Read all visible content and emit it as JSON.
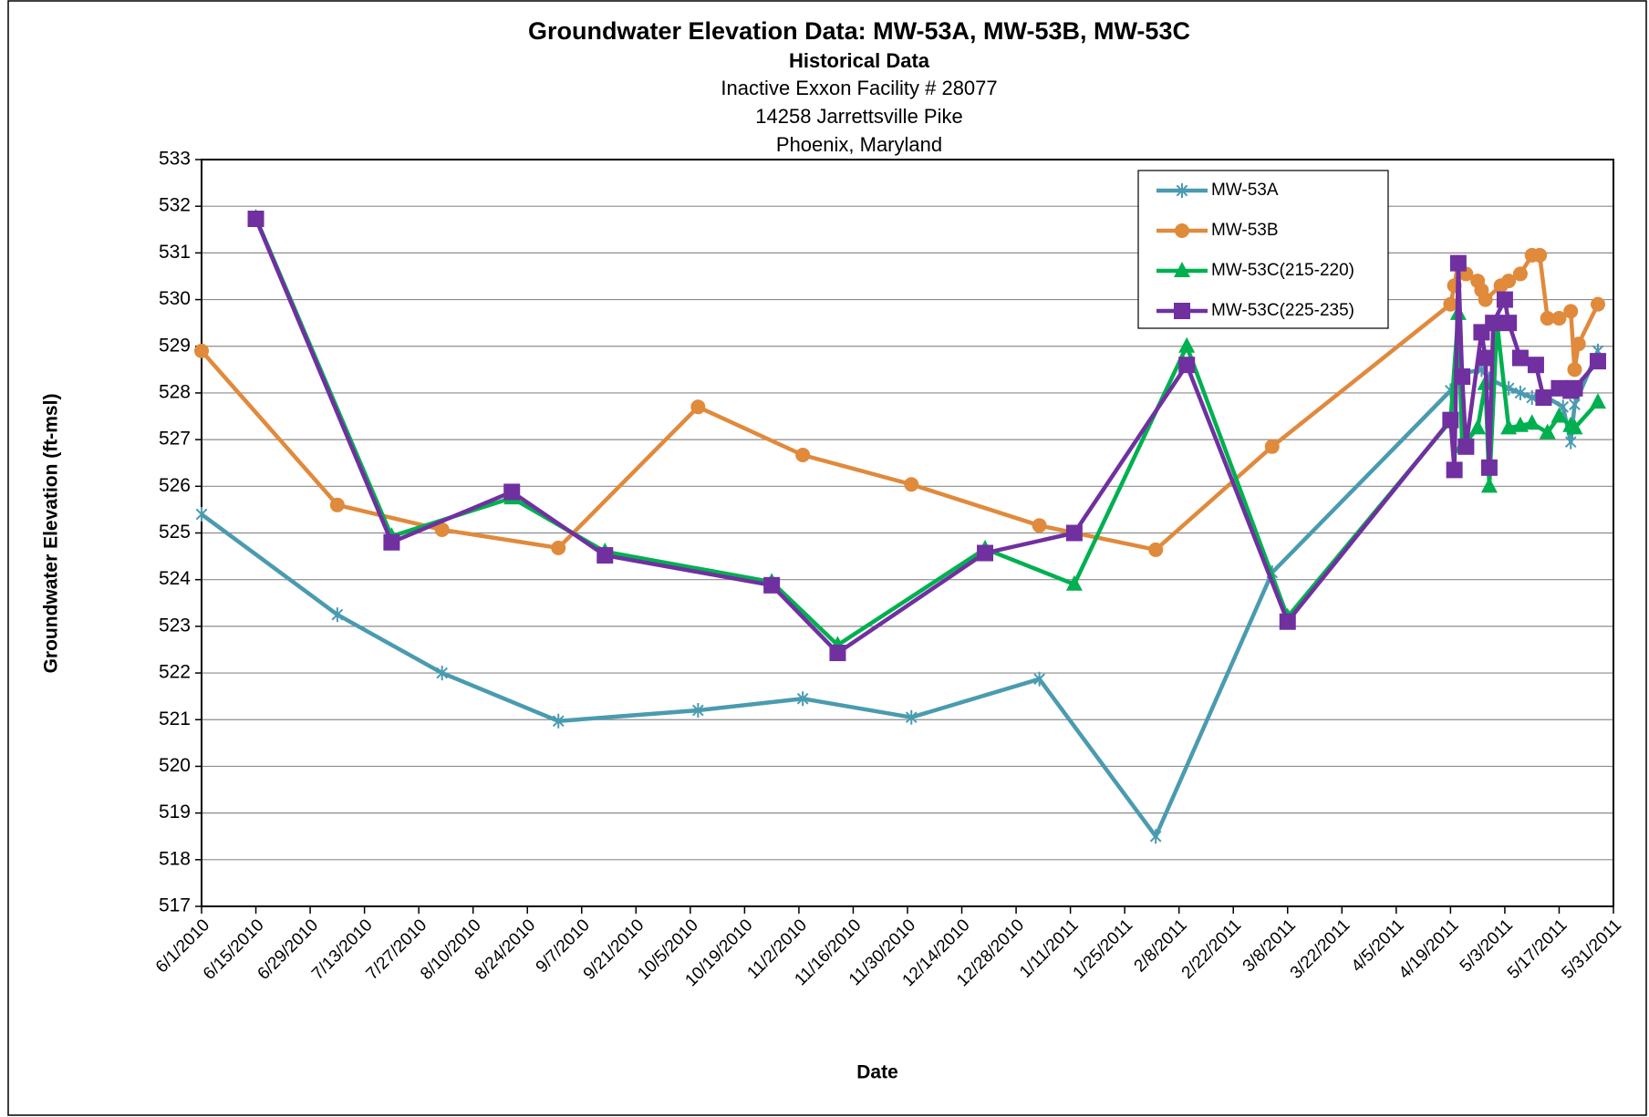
{
  "chart_data": {
    "type": "line",
    "title": "Groundwater Elevation Data: MW-53A, MW-53B, MW-53C",
    "subtitle": "Historical Data",
    "subtitle_lines": [
      "Inactive Exxon Facility # 28077",
      "14258 Jarrettsville Pike",
      "Phoenix, Maryland"
    ],
    "x_label": "Date",
    "y_label": "Groundwater Elevation  (ft-msl)",
    "xlim": [
      "6/1/2010",
      "5/31/2011"
    ],
    "xticks": [
      "6/1/2010",
      "6/15/2010",
      "6/29/2010",
      "7/13/2010",
      "7/27/2010",
      "8/10/2010",
      "8/24/2010",
      "9/7/2010",
      "9/21/2010",
      "10/5/2010",
      "10/19/2010",
      "11/2/2010",
      "11/16/2010",
      "11/30/2010",
      "12/14/2010",
      "12/28/2010",
      "1/11/2011",
      "1/25/2011",
      "2/8/2011",
      "2/22/2011",
      "3/8/2011",
      "3/22/2011",
      "4/5/2011",
      "4/19/2011",
      "5/3/2011",
      "5/17/2011",
      "5/31/2011"
    ],
    "ylim": [
      517,
      533
    ],
    "yticks": [
      517,
      518,
      519,
      520,
      521,
      522,
      523,
      524,
      525,
      526,
      527,
      528,
      529,
      530,
      531,
      532,
      533
    ],
    "grid": true,
    "legend": "upper right",
    "series": [
      {
        "name": "MW-53A",
        "color": "#4a9bb0",
        "marker": "asterisk",
        "x": [
          "6/1/2010",
          "7/6/2010",
          "8/2/2010",
          "9/1/2010",
          "10/7/2010",
          "11/3/2010",
          "12/1/2010",
          "1/3/2011",
          "2/2/2011",
          "3/4/2011",
          "4/19/2011",
          "4/21/2011",
          "4/27/2011",
          "4/29/2011",
          "5/4/2011",
          "5/7/2011",
          "5/10/2011",
          "5/14/2011",
          "5/18/2011",
          "5/20/2011",
          "5/21/2011",
          "5/27/2011"
        ],
        "values": [
          525.4,
          523.25,
          522.0,
          520.97,
          521.2,
          521.45,
          521.05,
          521.87,
          518.5,
          524.15,
          528.05,
          528.4,
          528.5,
          528.3,
          528.1,
          528.0,
          527.9,
          527.9,
          527.7,
          526.95,
          527.75,
          528.9
        ]
      },
      {
        "name": "MW-53B",
        "color": "#e08a3c",
        "marker": "circle",
        "x": [
          "6/1/2010",
          "7/6/2010",
          "8/2/2010",
          "9/1/2010",
          "10/7/2010",
          "11/3/2010",
          "12/1/2010",
          "1/3/2011",
          "2/2/2011",
          "3/4/2011",
          "4/19/2011",
          "4/20/2011",
          "4/21/2011",
          "4/23/2011",
          "4/26/2011",
          "4/27/2011",
          "4/28/2011",
          "5/2/2011",
          "5/4/2011",
          "5/7/2011",
          "5/10/2011",
          "5/12/2011",
          "5/14/2011",
          "5/17/2011",
          "5/20/2011",
          "5/21/2011",
          "5/22/2011",
          "5/27/2011"
        ],
        "values": [
          528.9,
          525.6,
          525.07,
          524.68,
          527.7,
          526.67,
          526.04,
          525.16,
          524.64,
          526.85,
          529.9,
          530.3,
          530.8,
          530.55,
          530.4,
          530.2,
          530.0,
          530.3,
          530.4,
          530.55,
          530.95,
          530.95,
          529.6,
          529.6,
          529.75,
          528.5,
          529.05,
          529.9
        ]
      },
      {
        "name": "MW-53C(215-220)",
        "color": "#00b050",
        "marker": "triangle",
        "x": [
          "6/15/2010",
          "7/20/2010",
          "8/20/2010",
          "9/13/2010",
          "10/26/2010",
          "11/12/2010",
          "12/20/2010",
          "1/12/2011",
          "2/10/2011",
          "3/8/2011",
          "4/19/2011",
          "4/21/2011",
          "4/22/2011",
          "4/26/2011",
          "4/28/2011",
          "4/29/2011",
          "5/1/2011",
          "5/4/2011",
          "5/7/2011",
          "5/10/2011",
          "5/14/2011",
          "5/17/2011",
          "5/20/2011",
          "5/21/2011",
          "5/27/2011"
        ],
        "values": [
          531.75,
          524.93,
          525.75,
          524.6,
          523.95,
          522.6,
          524.66,
          523.9,
          529.0,
          523.2,
          527.4,
          529.7,
          526.85,
          527.25,
          528.2,
          526.0,
          529.5,
          527.25,
          527.3,
          527.35,
          527.15,
          527.5,
          527.3,
          527.25,
          527.8
        ]
      },
      {
        "name": "MW-53C(225-235)",
        "color": "#7030a0",
        "marker": "square",
        "x": [
          "6/15/2010",
          "7/20/2010",
          "8/20/2010",
          "9/13/2010",
          "10/26/2010",
          "11/12/2010",
          "12/20/2010",
          "1/12/2011",
          "2/10/2011",
          "3/8/2011",
          "4/19/2011",
          "4/20/2011",
          "4/21/2011",
          "4/22/2011",
          "4/23/2011",
          "4/27/2011",
          "4/28/2011",
          "4/29/2011",
          "4/30/2011",
          "5/3/2011",
          "5/4/2011",
          "5/7/2011",
          "5/11/2011",
          "5/13/2011",
          "5/17/2011",
          "5/20/2011",
          "5/21/2011",
          "5/27/2011"
        ],
        "values": [
          531.73,
          524.8,
          525.88,
          524.52,
          523.88,
          522.43,
          524.57,
          525.0,
          528.6,
          523.1,
          527.42,
          526.35,
          530.78,
          528.35,
          526.85,
          529.3,
          528.75,
          526.4,
          529.5,
          530.0,
          529.5,
          528.75,
          528.6,
          527.9,
          528.1,
          528.05,
          528.1,
          528.68
        ]
      }
    ]
  }
}
